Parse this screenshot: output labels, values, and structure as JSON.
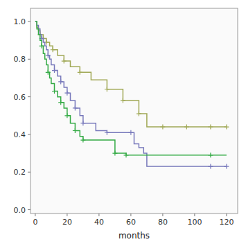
{
  "chart_data": {
    "type": "step",
    "xlabel": "months",
    "xlim": [
      -3,
      127
    ],
    "ylim": [
      -0.02,
      1.07
    ],
    "xticks": [
      0,
      20,
      40,
      60,
      80,
      100,
      120
    ],
    "yticks": [
      {
        "value": 0.0,
        "label": "0.0"
      },
      0.2,
      0.4,
      0.6,
      0.8,
      {
        "value": 1.0,
        "label": "1.0"
      }
    ],
    "grid": false,
    "series": [
      {
        "color": "#a0a855",
        "marker": "plus",
        "x": [
          0,
          1,
          2,
          3,
          5,
          7,
          9,
          11,
          14,
          18,
          22,
          28,
          35,
          45,
          55,
          65,
          70,
          120
        ],
        "values": [
          1.0,
          0.97,
          0.95,
          0.93,
          0.91,
          0.89,
          0.87,
          0.85,
          0.82,
          0.79,
          0.76,
          0.73,
          0.69,
          0.64,
          0.58,
          0.51,
          0.44,
          0.44
        ],
        "censored_x": [
          3,
          7,
          11,
          18,
          28,
          45,
          55,
          65,
          80,
          95,
          110,
          120
        ],
        "censored_values": [
          0.93,
          0.89,
          0.85,
          0.79,
          0.73,
          0.64,
          0.58,
          0.51,
          0.44,
          0.44,
          0.44,
          0.44
        ]
      },
      {
        "color": "#7778bb",
        "marker": "plus",
        "x": [
          0,
          1,
          2,
          3,
          4,
          5,
          6,
          7,
          8,
          9,
          10,
          12,
          14,
          16,
          18,
          20,
          22,
          25,
          28,
          30,
          38,
          45,
          60,
          62,
          65,
          68,
          70,
          120
        ],
        "values": [
          1.0,
          0.98,
          0.96,
          0.93,
          0.91,
          0.89,
          0.87,
          0.85,
          0.82,
          0.8,
          0.77,
          0.74,
          0.71,
          0.68,
          0.65,
          0.62,
          0.58,
          0.54,
          0.5,
          0.46,
          0.42,
          0.41,
          0.41,
          0.35,
          0.33,
          0.3,
          0.23,
          0.23
        ],
        "censored_x": [
          4,
          8,
          12,
          16,
          20,
          25,
          30,
          45,
          60,
          110,
          120
        ],
        "censored_values": [
          0.91,
          0.82,
          0.74,
          0.68,
          0.62,
          0.54,
          0.46,
          0.41,
          0.41,
          0.23,
          0.23
        ]
      },
      {
        "color": "#33aa44",
        "marker": "plus",
        "x": [
          0,
          1,
          2,
          3,
          4,
          5,
          6,
          7,
          8,
          9,
          10,
          12,
          14,
          16,
          18,
          20,
          22,
          25,
          28,
          30,
          50,
          57,
          70,
          110,
          120
        ],
        "values": [
          1.0,
          0.96,
          0.93,
          0.9,
          0.87,
          0.83,
          0.8,
          0.77,
          0.73,
          0.7,
          0.67,
          0.63,
          0.6,
          0.57,
          0.54,
          0.5,
          0.46,
          0.42,
          0.39,
          0.37,
          0.3,
          0.29,
          0.29,
          0.29,
          0.29
        ],
        "censored_x": [
          4,
          8,
          12,
          16,
          20,
          25,
          30,
          50,
          57,
          110
        ],
        "censored_values": [
          0.87,
          0.73,
          0.63,
          0.57,
          0.5,
          0.42,
          0.37,
          0.3,
          0.29,
          0.29
        ]
      }
    ]
  }
}
